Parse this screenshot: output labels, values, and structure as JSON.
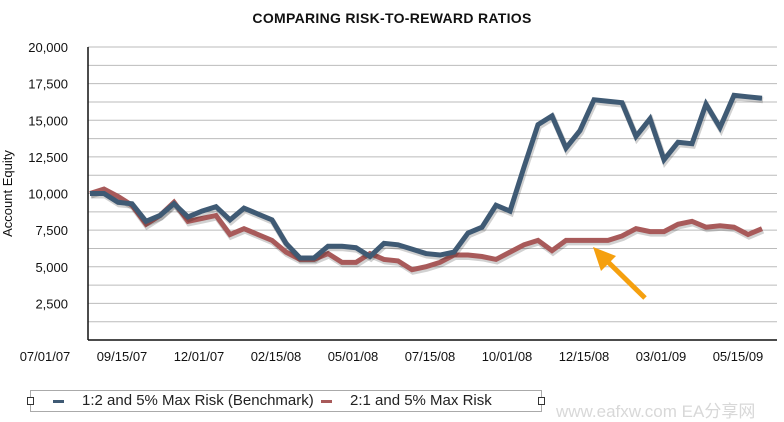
{
  "chart_data": {
    "type": "line",
    "title": "COMPARING RISK-TO-REWARD RATIOS",
    "xlabel": "",
    "ylabel": "Account Equity",
    "ylim": [
      0,
      20000
    ],
    "yticks": [
      "2,500",
      "5,000",
      "7,500",
      "10,000",
      "12,500",
      "15,000",
      "17,500",
      "20,000"
    ],
    "ytick_values": [
      2500,
      5000,
      7500,
      10000,
      12500,
      15000,
      17500,
      20000
    ],
    "xtick_labels": [
      "07/01/07",
      "09/15/07",
      "12/01/07",
      "02/15/08",
      "05/01/08",
      "07/15/08",
      "10/01/08",
      "12/15/08",
      "03/01/09",
      "05/15/09"
    ],
    "grid": true,
    "legend_placement": "bottom",
    "series": [
      {
        "name": "1:2 and 5% Max Risk (Benchmark)",
        "color": "#3f5a74",
        "values": [
          10000,
          10000,
          9400,
          9300,
          8100,
          8500,
          9300,
          8400,
          8800,
          9100,
          8200,
          9000,
          8600,
          8200,
          6600,
          5600,
          5600,
          6400,
          6400,
          6300,
          5700,
          6600,
          6500,
          6200,
          5900,
          5800,
          6000,
          7300,
          7700,
          9200,
          8800,
          11800,
          14700,
          15300,
          13100,
          14300,
          16400,
          16300,
          16200,
          13900,
          15100,
          12300,
          13500,
          13400,
          16100,
          14500,
          16700,
          16600,
          16500
        ]
      },
      {
        "name": "2:1 and 5% Max Risk",
        "color": "#a85a5a",
        "values": [
          10000,
          10300,
          9800,
          9200,
          7900,
          8500,
          9400,
          8100,
          8300,
          8500,
          7200,
          7600,
          7200,
          6800,
          6000,
          5500,
          5500,
          5900,
          5300,
          5300,
          5900,
          5500,
          5400,
          4800,
          5000,
          5300,
          5800,
          5800,
          5700,
          5500,
          6000,
          6500,
          6800,
          6100,
          6800,
          6800,
          6800,
          6800,
          7100,
          7600,
          7400,
          7400,
          7900,
          8100,
          7700,
          7800,
          7700,
          7200,
          7600
        ]
      }
    ],
    "annotation": {
      "type": "arrow",
      "color": "#f5a00f"
    }
  },
  "watermark": "www.eafxw.com   EA分享网"
}
